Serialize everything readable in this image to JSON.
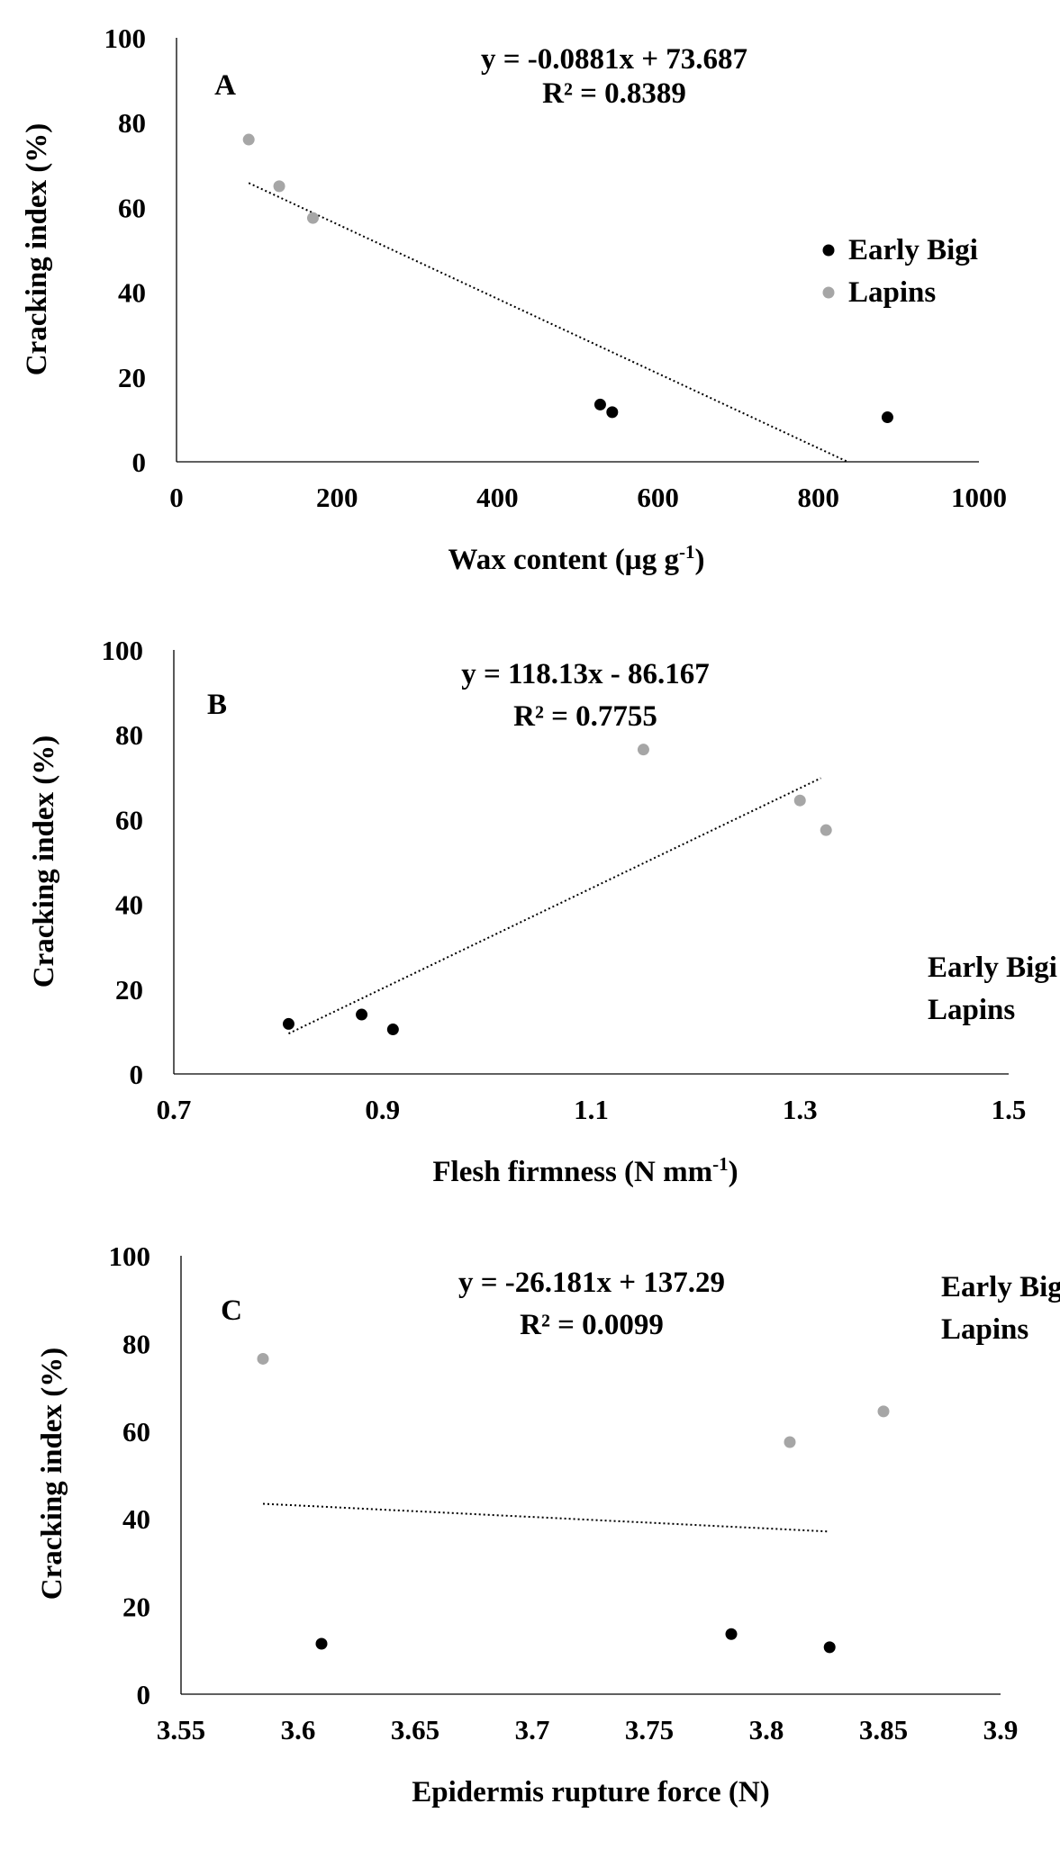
{
  "chart_data": [
    {
      "panel_label": "A",
      "type": "scatter",
      "xlabel": "Wax content (µg g",
      "xlabel_sup": "-1",
      "xlabel_close": ")",
      "ylabel": "Cracking index (%)",
      "xlim": [
        0,
        1000
      ],
      "ylim": [
        0,
        100
      ],
      "x_ticks": [
        "0",
        "200",
        "400",
        "600",
        "800",
        "1000"
      ],
      "y_ticks": [
        "0",
        "20",
        "40",
        "60",
        "80",
        "100"
      ],
      "equation": "y = -0.0881x + 73.687",
      "r_squared": "R² = 0.8389",
      "trendline": {
        "slope": -0.0881,
        "intercept": 73.687,
        "x_range": [
          90,
          836
        ]
      },
      "legend": {
        "position": "right",
        "entries": [
          "Early Bigi",
          "Lapins"
        ],
        "show_markers": true
      },
      "series": [
        {
          "name": "Early Bigi",
          "color": "#000000",
          "points": [
            [
              528,
              13.5
            ],
            [
              543,
              11.7
            ],
            [
              886,
              10.5
            ]
          ]
        },
        {
          "name": "Lapins",
          "color": "#a6a6a6",
          "points": [
            [
              90,
              76
            ],
            [
              128,
              65
            ],
            [
              170,
              57.5
            ]
          ]
        }
      ]
    },
    {
      "panel_label": "B",
      "type": "scatter",
      "xlabel": "Flesh firmness (N mm",
      "xlabel_sup": "-1",
      "xlabel_close": ")",
      "ylabel": "Cracking index (%)",
      "xlim": [
        0.7,
        1.5
      ],
      "ylim": [
        0,
        100
      ],
      "x_ticks": [
        "0.7",
        "0.9",
        "1.1",
        "1.3",
        "1.5"
      ],
      "y_ticks": [
        "0",
        "20",
        "40",
        "60",
        "80",
        "100"
      ],
      "equation": "y = 118.13x - 86.167",
      "r_squared": "R² = 0.7755",
      "trendline": {
        "slope": 118.13,
        "intercept": -86.167,
        "x_range": [
          0.81,
          1.32
        ]
      },
      "legend": {
        "position": "bottom-right",
        "entries": [
          "Early Bigi",
          "Lapins"
        ],
        "show_markers": false
      },
      "series": [
        {
          "name": "Early Bigi",
          "color": "#000000",
          "points": [
            [
              0.81,
              11.8
            ],
            [
              0.88,
              14
            ],
            [
              0.91,
              10.5
            ]
          ]
        },
        {
          "name": "Lapins",
          "color": "#a6a6a6",
          "points": [
            [
              1.15,
              76.5
            ],
            [
              1.3,
              64.5
            ],
            [
              1.325,
              57.5
            ]
          ]
        }
      ]
    },
    {
      "panel_label": "C",
      "type": "scatter",
      "xlabel": "Epidermis rupture force (N)",
      "xlabel_sup": "",
      "xlabel_close": "",
      "ylabel": "Cracking index (%)",
      "xlim": [
        3.55,
        3.9
      ],
      "ylim": [
        0,
        100
      ],
      "x_ticks": [
        "3.55",
        "3.6",
        "3.65",
        "3.7",
        "3.75",
        "3.8",
        "3.85",
        "3.9"
      ],
      "y_ticks": [
        "0",
        "20",
        "40",
        "60",
        "80",
        "100"
      ],
      "equation": "y = -26.181x + 137.29",
      "r_squared": "R² = 0.0099",
      "trendline": {
        "slope": -26.181,
        "intercept": 137.29,
        "x_range": [
          3.585,
          3.827
        ]
      },
      "legend": {
        "position": "top-right",
        "entries": [
          "Early Bigi",
          "Lapins"
        ],
        "show_markers": false
      },
      "series": [
        {
          "name": "Early Bigi",
          "color": "#000000",
          "points": [
            [
              3.61,
              11.5
            ],
            [
              3.785,
              13.7
            ],
            [
              3.827,
              10.7
            ]
          ]
        },
        {
          "name": "Lapins",
          "color": "#a6a6a6",
          "points": [
            [
              3.585,
              76.5
            ],
            [
              3.81,
              57.5
            ],
            [
              3.85,
              64.5
            ]
          ]
        }
      ]
    }
  ]
}
